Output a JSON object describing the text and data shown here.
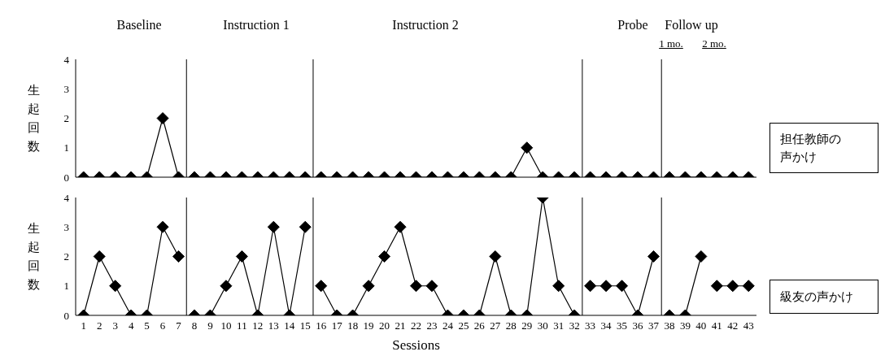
{
  "chart_data": [
    {
      "type": "line",
      "ylabel": "生起回数",
      "annotations": [
        "Baseline",
        "Instruction 1",
        "Instruction 2",
        "Probe",
        "Follow up",
        "1 mo.",
        "2 mo."
      ],
      "xlim": [
        0.5,
        43.5
      ],
      "xticks": [
        1,
        2,
        3,
        4,
        5,
        6,
        7,
        8,
        9,
        10,
        11,
        12,
        13,
        14,
        15,
        16,
        17,
        18,
        19,
        20,
        21,
        22,
        23,
        24,
        25,
        26,
        27,
        28,
        29,
        30,
        31,
        32,
        33,
        34,
        35,
        36,
        37,
        38,
        39,
        40,
        41,
        42,
        43
      ],
      "ylim": [
        0,
        4
      ],
      "yticks": [
        0,
        1,
        2,
        3,
        4
      ],
      "tick_labels": "y",
      "grid": false,
      "legend": false,
      "marker": "diamond",
      "line_style": "solid",
      "ref_lines": [
        {
          "axis": "x",
          "value": 7.5
        },
        {
          "axis": "x",
          "value": 15.5
        },
        {
          "axis": "x",
          "value": 32.5
        },
        {
          "axis": "x",
          "value": 37.5
        }
      ],
      "series": [
        {
          "name": "担任教師の声かけ",
          "color": "#000000",
          "x": [
            1,
            2,
            3,
            4,
            5,
            6,
            7
          ],
          "values": [
            0,
            0,
            0,
            0,
            0,
            2,
            0
          ]
        },
        {
          "color": "#000000",
          "x": [
            8,
            9,
            10,
            11,
            12,
            13,
            14,
            15
          ],
          "values": [
            0,
            0,
            0,
            0,
            0,
            0,
            0,
            0
          ]
        },
        {
          "color": "#000000",
          "x": [
            16,
            17,
            18,
            19,
            20,
            21,
            22,
            23,
            24,
            25,
            26,
            27,
            28,
            29,
            30,
            31,
            32
          ],
          "values": [
            0,
            0,
            0,
            0,
            0,
            0,
            0,
            0,
            0,
            0,
            0,
            0,
            0,
            1,
            0,
            0,
            0
          ]
        },
        {
          "color": "#000000",
          "x": [
            33,
            34,
            35,
            36,
            37
          ],
          "values": [
            0,
            0,
            0,
            0,
            0
          ]
        },
        {
          "color": "#000000",
          "x": [
            38,
            39,
            40
          ],
          "values": [
            0,
            0,
            0
          ]
        },
        {
          "color": "#000000",
          "x": [
            41,
            42,
            43
          ],
          "values": [
            0,
            0,
            0
          ]
        }
      ]
    },
    {
      "type": "line",
      "ylabel": "生起回数",
      "xlabel": "Sessions",
      "xlim": [
        0.5,
        43.5
      ],
      "xticks": [
        1,
        2,
        3,
        4,
        5,
        6,
        7,
        8,
        9,
        10,
        11,
        12,
        13,
        14,
        15,
        16,
        17,
        18,
        19,
        20,
        21,
        22,
        23,
        24,
        25,
        26,
        27,
        28,
        29,
        30,
        31,
        32,
        33,
        34,
        35,
        36,
        37,
        38,
        39,
        40,
        41,
        42,
        43
      ],
      "ylim": [
        0,
        4
      ],
      "yticks": [
        0,
        1,
        2,
        3,
        4
      ],
      "grid": false,
      "legend": false,
      "marker": "diamond",
      "line_style": "solid",
      "ref_lines": [
        {
          "axis": "x",
          "value": 7.5
        },
        {
          "axis": "x",
          "value": 15.5
        },
        {
          "axis": "x",
          "value": 32.5
        },
        {
          "axis": "x",
          "value": 37.5
        }
      ],
      "series": [
        {
          "name": "級友の声かけ",
          "color": "#000000",
          "x": [
            1,
            2,
            3,
            4,
            5,
            6,
            7
          ],
          "values": [
            0,
            2,
            1,
            0,
            0,
            3,
            2
          ]
        },
        {
          "color": "#000000",
          "x": [
            8,
            9,
            10,
            11,
            12,
            13,
            14,
            15
          ],
          "values": [
            0,
            0,
            1,
            2,
            0,
            3,
            0,
            3
          ]
        },
        {
          "color": "#000000",
          "x": [
            16,
            17,
            18,
            19,
            20,
            21,
            22,
            23,
            24,
            25,
            26,
            27,
            28,
            29,
            30,
            31,
            32
          ],
          "values": [
            1,
            0,
            0,
            1,
            2,
            3,
            1,
            1,
            0,
            0,
            0,
            2,
            0,
            0,
            4,
            1,
            0
          ]
        },
        {
          "color": "#000000",
          "x": [
            33,
            34,
            35,
            36,
            37
          ],
          "values": [
            1,
            1,
            1,
            0,
            2
          ]
        },
        {
          "color": "#000000",
          "x": [
            38,
            39,
            40
          ],
          "values": [
            0,
            0,
            2
          ]
        },
        {
          "color": "#000000",
          "x": [
            41,
            42,
            43
          ],
          "values": [
            1,
            1,
            1
          ]
        }
      ]
    }
  ]
}
